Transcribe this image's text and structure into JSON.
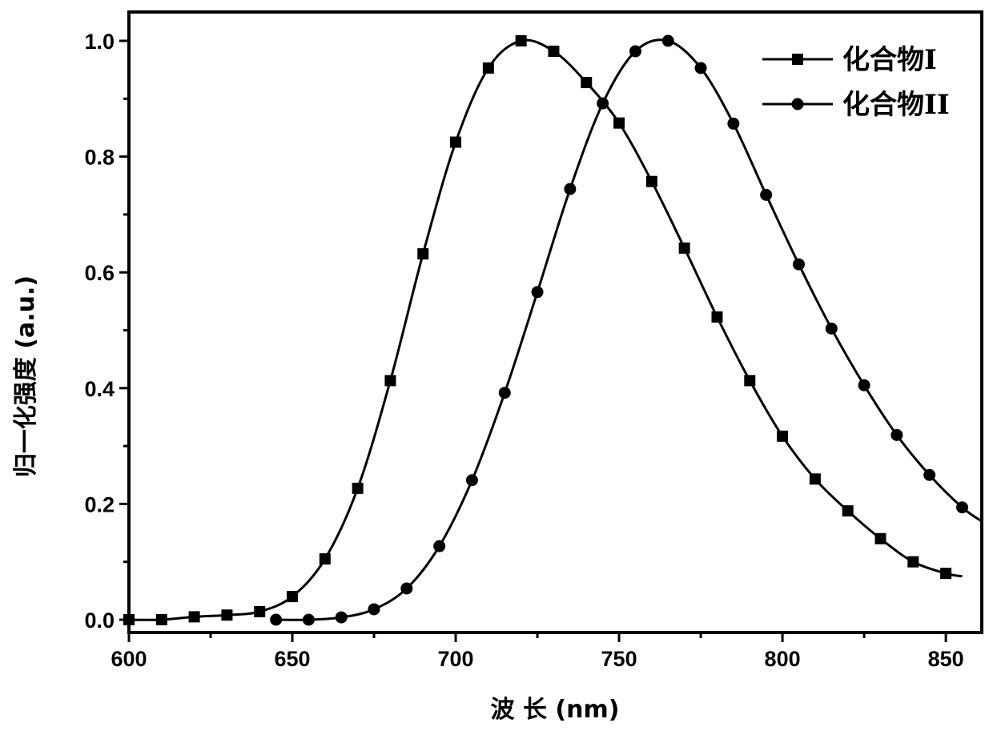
{
  "chart_data": {
    "type": "line",
    "title": "",
    "xlabel": "波 长 (nm)",
    "ylabel": "归一化强度 (a.u.)",
    "xlim": [
      600,
      861
    ],
    "ylim": [
      0.0,
      1.0
    ],
    "xticks": [
      600,
      650,
      700,
      750,
      800,
      850
    ],
    "xtick_labels": [
      "600",
      "650",
      "700",
      "750",
      "800",
      "850"
    ],
    "yticks": [
      0.0,
      0.2,
      0.4,
      0.6,
      0.8,
      1.0
    ],
    "ytick_labels": [
      "0.0",
      "0.2",
      "0.4",
      "0.6",
      "0.8",
      "1.0"
    ],
    "grid": false,
    "legend_position": "top-right",
    "color": "#000000",
    "series": [
      {
        "name": "化合物I",
        "marker": "square",
        "x": [
          600,
          610,
          620,
          630,
          640,
          650,
          660,
          670,
          680,
          690,
          700,
          710,
          720,
          730,
          740,
          750,
          760,
          770,
          780,
          790,
          800,
          810,
          820,
          830,
          840,
          850
        ],
        "y": [
          0.0,
          0.0,
          0.005,
          0.008,
          0.014,
          0.04,
          0.105,
          0.227,
          0.413,
          0.632,
          0.825,
          0.953,
          1.0,
          0.982,
          0.928,
          0.858,
          0.757,
          0.642,
          0.523,
          0.413,
          0.317,
          0.243,
          0.188,
          0.14,
          0.1,
          0.08
        ],
        "curve_end": [
          855,
          0.075
        ]
      },
      {
        "name": "化合物II",
        "marker": "circle",
        "x": [
          645,
          655,
          665,
          675,
          685,
          695,
          705,
          715,
          725,
          735,
          745,
          755,
          765,
          775,
          785,
          795,
          805,
          815,
          825,
          835,
          845,
          855
        ],
        "y": [
          0.0,
          0.0,
          0.004,
          0.018,
          0.054,
          0.127,
          0.241,
          0.392,
          0.566,
          0.744,
          0.892,
          0.982,
          1.0,
          0.953,
          0.857,
          0.734,
          0.614,
          0.503,
          0.405,
          0.319,
          0.25,
          0.194
        ],
        "curve_end": [
          861,
          0.17
        ]
      }
    ]
  }
}
